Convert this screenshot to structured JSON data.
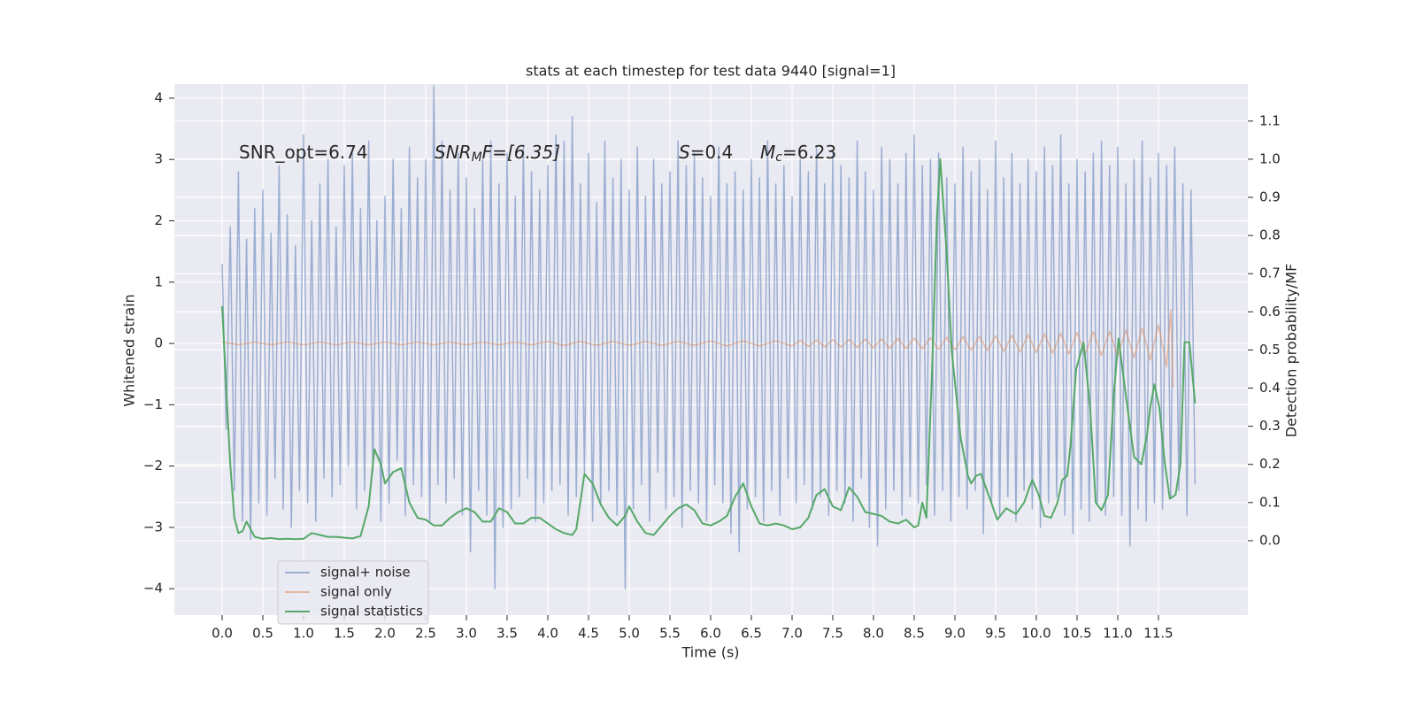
{
  "chart_data": {
    "type": "line",
    "title": "stats at each timestep for test data 9440 [signal=1]",
    "x_label": "Time (s)",
    "y_label": "Whitened strain",
    "y2_label": "Detection probability/MF",
    "xlim": [
      -0.587,
      12.598
    ],
    "ylim": [
      -4.43,
      4.23
    ],
    "y2lim": [
      -0.195,
      1.197
    ],
    "grid": true,
    "legend": "lower left",
    "xticks": [
      {
        "value": 0,
        "label": "0.0"
      },
      {
        "value": 0.5,
        "label": "0.5"
      },
      {
        "value": 1,
        "label": "1.0"
      },
      {
        "value": 1.5,
        "label": "1.5"
      },
      {
        "value": 2,
        "label": "2.0"
      },
      {
        "value": 2.5,
        "label": "2.5"
      },
      {
        "value": 3,
        "label": "3.0"
      },
      {
        "value": 3.5,
        "label": "3.5"
      },
      {
        "value": 4,
        "label": "4.0"
      },
      {
        "value": 4.5,
        "label": "4.5"
      },
      {
        "value": 5,
        "label": "5.0"
      },
      {
        "value": 5.5,
        "label": "5.5"
      },
      {
        "value": 6,
        "label": "6.0"
      },
      {
        "value": 6.5,
        "label": "6.5"
      },
      {
        "value": 7,
        "label": "7.0"
      },
      {
        "value": 7.5,
        "label": "7.5"
      },
      {
        "value": 8,
        "label": "8.0"
      },
      {
        "value": 8.5,
        "label": "8.5"
      },
      {
        "value": 9,
        "label": "9.0"
      },
      {
        "value": 9.5,
        "label": "9.5"
      },
      {
        "value": 10,
        "label": "10.0"
      },
      {
        "value": 10.5,
        "label": "10.5"
      },
      {
        "value": 11,
        "label": "11.0"
      },
      {
        "value": 11.5,
        "label": "11.5"
      }
    ],
    "yticks": [
      {
        "value": -4,
        "label": "−4"
      },
      {
        "value": -3,
        "label": "−3"
      },
      {
        "value": -2,
        "label": "−2"
      },
      {
        "value": -1,
        "label": "−1"
      },
      0,
      1,
      2,
      3,
      4
    ],
    "y2ticks": [
      {
        "value": 0,
        "label": "0.0"
      },
      {
        "value": 0.1,
        "label": "0.1"
      },
      {
        "value": 0.2,
        "label": "0.2"
      },
      {
        "value": 0.3,
        "label": "0.3"
      },
      {
        "value": 0.4,
        "label": "0.4"
      },
      {
        "value": 0.5,
        "label": "0.5"
      },
      {
        "value": 0.6,
        "label": "0.6"
      },
      {
        "value": 0.7,
        "label": "0.7"
      },
      {
        "value": 0.8,
        "label": "0.8"
      },
      {
        "value": 0.9,
        "label": "0.9"
      },
      {
        "value": 1,
        "label": "1.0"
      },
      {
        "value": 1.1,
        "label": "1.1"
      }
    ],
    "annotations": [
      {
        "base": "SNR_opt=6.74",
        "italic": false
      },
      {
        "base": "SNR",
        "sub": "M",
        "rest": "F=[6.35]",
        "italic": true
      },
      {
        "base": "S",
        "rest": "=0.4",
        "italic": true
      },
      {
        "base": "M",
        "sub": "c",
        "rest": "=6.23",
        "italic": true
      }
    ],
    "series": [
      {
        "name": "signal+ noise",
        "color": "#4c72b0",
        "opacity": 0.5,
        "x": [
          0,
          0.05,
          0.1,
          0.15,
          0.2,
          0.25,
          0.3,
          0.35,
          0.4,
          0.45,
          0.5,
          0.55,
          0.6,
          0.65,
          0.7,
          0.75,
          0.8,
          0.85,
          0.9,
          0.95,
          1,
          1.05,
          1.1,
          1.15,
          1.2,
          1.25,
          1.3,
          1.35,
          1.4,
          1.45,
          1.5,
          1.55,
          1.6,
          1.65,
          1.7,
          1.75,
          1.8,
          1.85,
          1.9,
          1.95,
          2,
          2.05,
          2.1,
          2.15,
          2.2,
          2.25,
          2.3,
          2.35,
          2.4,
          2.45,
          2.5,
          2.55,
          2.6,
          2.65,
          2.7,
          2.75,
          2.8,
          2.85,
          2.9,
          2.95,
          3,
          3.05,
          3.1,
          3.15,
          3.2,
          3.25,
          3.3,
          3.35,
          3.4,
          3.45,
          3.5,
          3.55,
          3.6,
          3.65,
          3.7,
          3.75,
          3.8,
          3.85,
          3.9,
          3.95,
          4,
          4.05,
          4.1,
          4.15,
          4.2,
          4.25,
          4.3,
          4.35,
          4.4,
          4.45,
          4.5,
          4.55,
          4.6,
          4.65,
          4.7,
          4.75,
          4.8,
          4.85,
          4.9,
          4.95,
          5,
          5.05,
          5.1,
          5.15,
          5.2,
          5.25,
          5.3,
          5.35,
          5.4,
          5.45,
          5.5,
          5.55,
          5.6,
          5.65,
          5.7,
          5.75,
          5.8,
          5.85,
          5.9,
          5.95,
          6,
          6.05,
          6.1,
          6.15,
          6.2,
          6.25,
          6.3,
          6.35,
          6.4,
          6.45,
          6.5,
          6.55,
          6.6,
          6.65,
          6.7,
          6.75,
          6.8,
          6.85,
          6.9,
          6.95,
          7,
          7.05,
          7.1,
          7.15,
          7.2,
          7.25,
          7.3,
          7.35,
          7.4,
          7.45,
          7.5,
          7.55,
          7.6,
          7.65,
          7.7,
          7.75,
          7.8,
          7.85,
          7.9,
          7.95,
          8,
          8.05,
          8.1,
          8.15,
          8.2,
          8.25,
          8.3,
          8.35,
          8.4,
          8.45,
          8.5,
          8.55,
          8.6,
          8.65,
          8.7,
          8.75,
          8.8,
          8.85,
          8.9,
          8.95,
          9,
          9.05,
          9.1,
          9.15,
          9.2,
          9.25,
          9.3,
          9.35,
          9.4,
          9.45,
          9.5,
          9.55,
          9.6,
          9.65,
          9.7,
          9.75,
          9.8,
          9.85,
          9.9,
          9.95,
          10,
          10.05,
          10.1,
          10.15,
          10.2,
          10.25,
          10.3,
          10.35,
          10.4,
          10.45,
          10.5,
          10.55,
          10.6,
          10.65,
          10.7,
          10.75,
          10.8,
          10.85,
          10.9,
          10.95,
          11,
          11.05,
          11.1,
          11.15,
          11.2,
          11.25,
          11.3,
          11.35,
          11.4,
          11.45,
          11.5,
          11.55,
          11.6,
          11.65,
          11.7,
          11.75,
          11.8,
          11.85,
          11.9,
          11.95
        ],
        "values": [
          1.3,
          -1.4,
          1.9,
          -2.4,
          2.8,
          -2.9,
          1.7,
          -3.2,
          2.2,
          -2.6,
          2.5,
          -2.8,
          1.8,
          -2.2,
          2.9,
          -2.7,
          2.1,
          -3.0,
          1.6,
          -2.4,
          3.4,
          -2.6,
          2.0,
          -2.9,
          2.6,
          -2.2,
          3.0,
          -2.5,
          1.9,
          -2.3,
          2.9,
          -2.0,
          3.1,
          -2.7,
          2.2,
          -2.4,
          3.3,
          -2.1,
          2.0,
          -2.9,
          2.4,
          -2.6,
          3.0,
          -1.9,
          2.2,
          -2.8,
          3.2,
          -2.3,
          2.7,
          -2.5,
          3.0,
          -2.9,
          4.2,
          -2.3,
          3.3,
          -2.6,
          2.5,
          -2.2,
          3.1,
          -2.8,
          2.7,
          -3.4,
          2.2,
          -2.4,
          3.0,
          -2.8,
          3.3,
          -4.0,
          2.6,
          -3.0,
          3.1,
          -2.7,
          2.4,
          -2.5,
          3.2,
          -2.2,
          2.8,
          -2.9,
          2.5,
          -2.6,
          2.9,
          -2.4,
          3.4,
          -2.3,
          3.3,
          -2.8,
          3.7,
          -2.5,
          2.6,
          -2.1,
          3.1,
          -2.9,
          2.3,
          -2.6,
          3.3,
          -2.4,
          2.7,
          -2.8,
          3.0,
          -4.0,
          2.5,
          -2.7,
          3.2,
          -2.3,
          2.4,
          -2.9,
          3.0,
          -2.1,
          2.6,
          -2.7,
          2.8,
          -2.5,
          3.3,
          -3.0,
          2.9,
          -2.4,
          3.1,
          -2.6,
          2.7,
          -2.9,
          2.4,
          -2.3,
          3.2,
          -2.6,
          2.6,
          -3.1,
          2.8,
          -3.4,
          2.5,
          -2.7,
          3.0,
          -2.5,
          2.7,
          -2.9,
          3.3,
          -2.4,
          2.6,
          -2.8,
          2.9,
          -2.2,
          2.4,
          -2.6,
          3.0,
          -2.3,
          2.8,
          -2.7,
          3.2,
          -2.5,
          2.6,
          -2.8,
          3.1,
          -2.4,
          2.9,
          -2.6,
          2.7,
          -2.9,
          3.3,
          -2.2,
          2.8,
          -3.0,
          2.5,
          -3.3,
          3.2,
          -2.7,
          3.0,
          -2.4,
          2.6,
          -2.8,
          3.1,
          -2.5,
          3.4,
          -2.6,
          2.9,
          -2.3,
          3.0,
          -2.8,
          3.1,
          -2.4,
          2.7,
          -2.9,
          2.6,
          -2.5,
          3.2,
          -2.7,
          2.8,
          -2.4,
          3.0,
          -3.1,
          2.5,
          -2.6,
          3.3,
          -2.8,
          2.7,
          -2.5,
          3.1,
          -2.9,
          2.6,
          -2.4,
          3.0,
          -2.7,
          2.8,
          -3.0,
          3.2,
          -2.6,
          2.9,
          -2.5,
          3.4,
          -2.8,
          2.6,
          -3.1,
          3.0,
          -2.7,
          2.8,
          -2.9,
          3.1,
          -2.6,
          3.3,
          -2.8,
          2.9,
          -2.5,
          3.2,
          -2.8,
          2.6,
          -3.3,
          3.0,
          -2.7,
          3.3,
          -2.9,
          2.7,
          -2.6,
          3.1,
          -2.7,
          2.9,
          -2.5,
          3.2,
          -2.4,
          2.6,
          -2.8,
          2.5,
          -2.3
        ]
      },
      {
        "name": "signal only",
        "color": "#dd8452",
        "opacity": 0.5,
        "x": [
          0,
          0.2,
          0.4,
          0.6,
          0.8,
          1,
          1.2,
          1.4,
          1.6,
          1.8,
          2,
          2.2,
          2.4,
          2.6,
          2.8,
          3,
          3.2,
          3.4,
          3.6,
          3.8,
          4,
          4.2,
          4.4,
          4.6,
          4.8,
          5,
          5.2,
          5.4,
          5.6,
          5.8,
          6,
          6.2,
          6.4,
          6.6,
          6.8,
          7,
          7.1,
          7.2,
          7.3,
          7.4,
          7.5,
          7.6,
          7.7,
          7.8,
          7.9,
          8,
          8.1,
          8.2,
          8.3,
          8.4,
          8.5,
          8.6,
          8.7,
          8.8,
          8.9,
          9,
          9.1,
          9.2,
          9.3,
          9.4,
          9.5,
          9.6,
          9.7,
          9.8,
          9.9,
          10,
          10.1,
          10.2,
          10.3,
          10.4,
          10.5,
          10.6,
          10.7,
          10.8,
          10.9,
          11,
          11.1,
          11.2,
          11.3,
          11.4,
          11.5,
          11.6,
          11.65,
          11.68
        ],
        "values": [
          0.02,
          -0.02,
          0.02,
          -0.02,
          0.02,
          -0.02,
          0.02,
          -0.02,
          0.02,
          -0.02,
          0.02,
          -0.02,
          0.02,
          -0.02,
          0.02,
          -0.02,
          0.02,
          -0.02,
          0.02,
          -0.02,
          0.03,
          -0.03,
          0.03,
          -0.03,
          0.03,
          -0.03,
          0.03,
          -0.03,
          0.03,
          -0.03,
          0.04,
          -0.04,
          0.04,
          -0.04,
          0.04,
          -0.04,
          0.05,
          -0.05,
          0.055,
          -0.055,
          0.06,
          -0.06,
          0.065,
          -0.065,
          0.07,
          -0.07,
          0.075,
          -0.08,
          0.08,
          -0.085,
          0.09,
          -0.09,
          0.095,
          -0.1,
          0.1,
          -0.105,
          0.11,
          -0.115,
          0.12,
          -0.12,
          0.125,
          -0.13,
          0.135,
          -0.14,
          0.145,
          -0.15,
          0.155,
          -0.16,
          0.165,
          -0.17,
          0.175,
          -0.18,
          0.19,
          -0.195,
          0.2,
          -0.21,
          0.22,
          -0.235,
          0.25,
          -0.27,
          0.3,
          -0.38,
          0.55,
          -0.72
        ]
      },
      {
        "name": "signal statistics",
        "color": "#55a868",
        "axis": "y2",
        "opacity": 1,
        "x": [
          0,
          0.05,
          0.1,
          0.15,
          0.2,
          0.25,
          0.3,
          0.35,
          0.4,
          0.5,
          0.6,
          0.7,
          0.8,
          0.9,
          1,
          1.1,
          1.2,
          1.3,
          1.4,
          1.5,
          1.6,
          1.7,
          1.8,
          1.87,
          1.95,
          2,
          2.1,
          2.2,
          2.3,
          2.4,
          2.5,
          2.6,
          2.7,
          2.8,
          2.9,
          3,
          3.1,
          3.2,
          3.3,
          3.4,
          3.5,
          3.6,
          3.7,
          3.8,
          3.9,
          4,
          4.1,
          4.2,
          4.3,
          4.35,
          4.45,
          4.55,
          4.65,
          4.75,
          4.85,
          4.95,
          5,
          5.1,
          5.2,
          5.3,
          5.4,
          5.5,
          5.6,
          5.7,
          5.8,
          5.9,
          6,
          6.1,
          6.2,
          6.3,
          6.4,
          6.5,
          6.6,
          6.7,
          6.8,
          6.9,
          7,
          7.1,
          7.2,
          7.3,
          7.4,
          7.5,
          7.6,
          7.7,
          7.8,
          7.9,
          8,
          8.1,
          8.2,
          8.3,
          8.4,
          8.5,
          8.55,
          8.6,
          8.65,
          8.72,
          8.78,
          8.82,
          8.9,
          8.96,
          9.07,
          9.16,
          9.2,
          9.26,
          9.32,
          9.43,
          9.52,
          9.63,
          9.75,
          9.85,
          9.95,
          10.03,
          10.1,
          10.18,
          10.26,
          10.32,
          10.38,
          10.42,
          10.49,
          10.58,
          10.66,
          10.73,
          10.8,
          10.88,
          10.95,
          11.01,
          11.1,
          11.2,
          11.29,
          11.36,
          11.4,
          11.45,
          11.51,
          11.58,
          11.64,
          11.71,
          11.77,
          11.82,
          11.88,
          11.95
        ],
        "values": [
          0.615,
          0.4,
          0.2,
          0.06,
          0.02,
          0.025,
          0.05,
          0.03,
          0.01,
          0.005,
          0.007,
          0.004,
          0.005,
          0.004,
          0.005,
          0.02,
          0.015,
          0.01,
          0.01,
          0.008,
          0.006,
          0.012,
          0.09,
          0.24,
          0.2,
          0.15,
          0.18,
          0.19,
          0.1,
          0.06,
          0.055,
          0.04,
          0.04,
          0.06,
          0.075,
          0.085,
          0.075,
          0.05,
          0.05,
          0.085,
          0.075,
          0.045,
          0.045,
          0.06,
          0.06,
          0.045,
          0.03,
          0.02,
          0.015,
          0.03,
          0.175,
          0.15,
          0.095,
          0.06,
          0.04,
          0.065,
          0.09,
          0.05,
          0.02,
          0.015,
          0.04,
          0.065,
          0.085,
          0.095,
          0.08,
          0.045,
          0.04,
          0.05,
          0.065,
          0.115,
          0.15,
          0.09,
          0.045,
          0.04,
          0.045,
          0.04,
          0.03,
          0.035,
          0.06,
          0.12,
          0.135,
          0.09,
          0.08,
          0.14,
          0.115,
          0.075,
          0.07,
          0.065,
          0.05,
          0.045,
          0.055,
          0.035,
          0.04,
          0.1,
          0.06,
          0.45,
          0.85,
          1.0,
          0.75,
          0.5,
          0.27,
          0.17,
          0.15,
          0.17,
          0.175,
          0.11,
          0.055,
          0.085,
          0.07,
          0.1,
          0.16,
          0.12,
          0.065,
          0.06,
          0.1,
          0.16,
          0.17,
          0.25,
          0.45,
          0.52,
          0.35,
          0.1,
          0.08,
          0.12,
          0.38,
          0.53,
          0.38,
          0.22,
          0.2,
          0.28,
          0.35,
          0.41,
          0.35,
          0.2,
          0.11,
          0.12,
          0.2,
          0.52,
          0.52,
          0.36
        ]
      }
    ]
  }
}
